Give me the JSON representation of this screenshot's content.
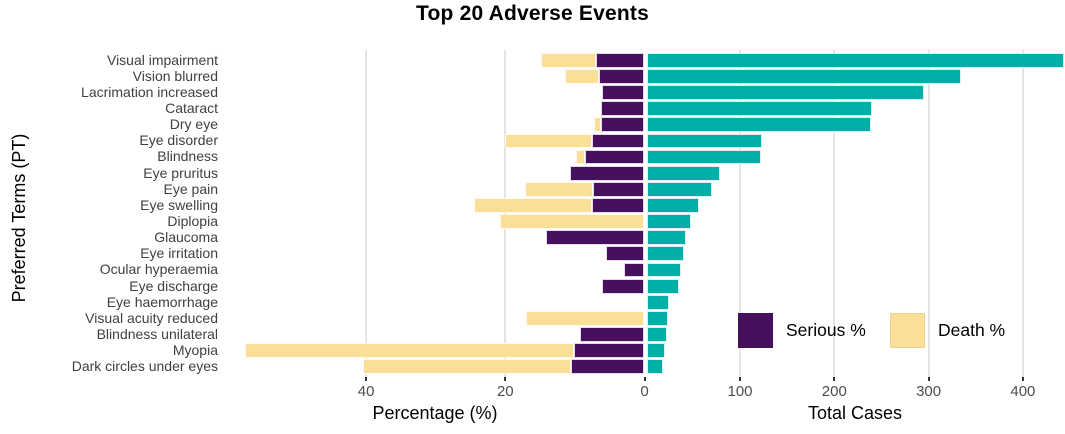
{
  "chart_data": {
    "type": "bar",
    "title": "Top 20 Adverse Events",
    "y_axis_label": "Preferred Terms (PT)",
    "orientation": "horizontal-diverging",
    "categories": [
      "Visual impairment",
      "Vision blurred",
      "Lacrimation increased",
      "Cataract",
      "Dry eye",
      "Eye disorder",
      "Blindness",
      "Eye pruritus",
      "Eye pain",
      "Eye swelling",
      "Diplopia",
      "Glaucoma",
      "Eye irritation",
      "Ocular hyperaemia",
      "Eye discharge",
      "Eye haemorrhage",
      "Visual acuity reduced",
      "Blindness unilateral",
      "Myopia",
      "Dark circles under eyes"
    ],
    "series": [
      {
        "name": "Serious %",
        "color": "#46105E",
        "panel": "left",
        "values": [
          7.0,
          6.6,
          6.1,
          6.2,
          6.2,
          7.6,
          8.6,
          10.7,
          7.4,
          7.5,
          0,
          14.2,
          5.5,
          3.0,
          6.1,
          0,
          0,
          9.2,
          10.1,
          10.6
        ]
      },
      {
        "name": "Death %",
        "color": "#FBDF96",
        "panel": "left",
        "values": [
          7.9,
          4.8,
          0,
          0,
          1.0,
          12.4,
          1.3,
          0,
          9.7,
          17.0,
          20.8,
          0,
          0,
          0,
          0,
          0,
          17.0,
          0,
          47.3,
          29.8
        ]
      },
      {
        "name": "Total Cases",
        "color": "#00B0A6",
        "panel": "right",
        "values": [
          443,
          333,
          294,
          239,
          238,
          122,
          121,
          78,
          69,
          56,
          47,
          42,
          40,
          36,
          34,
          24,
          23,
          22,
          19,
          17
        ]
      }
    ],
    "left_panel": {
      "xlabel": "Percentage (%)",
      "ticks": [
        40,
        20,
        0
      ],
      "direction": "reversed",
      "xlim": [
        60,
        0
      ]
    },
    "right_panel": {
      "xlabel": "Total Cases",
      "ticks": [
        100,
        200,
        300,
        400
      ],
      "xlim": [
        0,
        445
      ]
    },
    "legend": [
      {
        "label": "Serious %",
        "color": "#46105E"
      },
      {
        "label": "Death %",
        "color": "#FBDF96"
      }
    ],
    "legend_position": "inside lower-right of plot",
    "grid": true,
    "colors": {
      "gridline": "#E4E4E4",
      "axis_text": "#4D4D4D",
      "axis_title": "#000000",
      "background": "#FFFFFF"
    }
  }
}
